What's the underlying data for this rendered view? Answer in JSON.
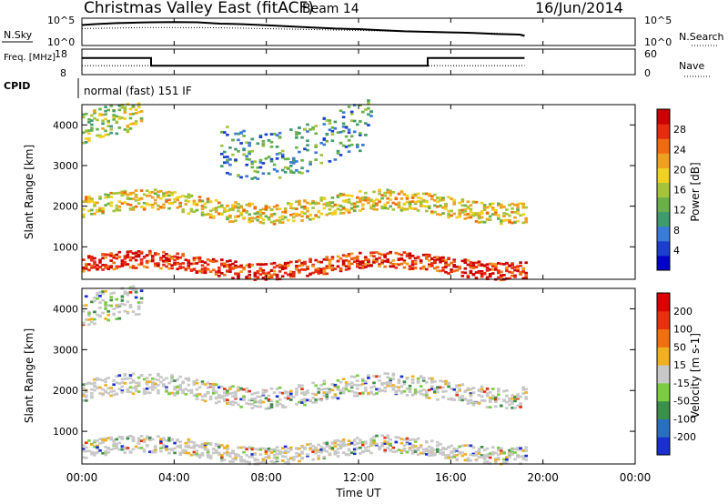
{
  "header": {
    "title": "Christmas Valley East (fitACF)",
    "beam": "Beam 14",
    "date": "16/Jun/2014"
  },
  "chart_data": [
    {
      "type": "line",
      "name": "noise-panel",
      "left_label": "N.Sky",
      "right_label": "N.Search",
      "left_ticks": [
        "10^5",
        "10^0"
      ],
      "right_ticks": [
        "10^5",
        "10^0"
      ],
      "x_range_hours": [
        0,
        24
      ],
      "series": [
        {
          "x": [
            0.0,
            0.5,
            1.0,
            1.5,
            2.0,
            2.5,
            3.0,
            4.0,
            5.0,
            6.0,
            7.0,
            8.0,
            9.0,
            10.0,
            11.0,
            12.0,
            13.0,
            14.0,
            15.0,
            16.0,
            17.0,
            18.0,
            19.0,
            19.2
          ],
          "y": [
            0.75,
            0.78,
            0.8,
            0.82,
            0.83,
            0.84,
            0.85,
            0.86,
            0.85,
            0.8,
            0.78,
            0.74,
            0.7,
            0.66,
            0.62,
            0.6,
            0.56,
            0.52,
            0.5,
            0.48,
            0.46,
            0.42,
            0.4,
            0.35
          ]
        }
      ],
      "dotted_series": [
        {
          "x": [
            0.0,
            3.0,
            6.0,
            9.0,
            12.0,
            15.0,
            18.0,
            19.2
          ],
          "y": [
            0.62,
            0.66,
            0.65,
            0.6,
            0.55,
            0.5,
            0.45,
            0.4
          ]
        }
      ]
    },
    {
      "type": "line",
      "name": "frequency-panel",
      "left_label": "Freq. [MHz]",
      "right_label": "Nave",
      "left_ticks": [
        "18",
        "8"
      ],
      "right_ticks": [
        "60",
        "0"
      ],
      "x_range_hours": [
        0,
        24
      ],
      "freq_series": {
        "x": [
          0.0,
          3.0,
          3.0,
          15.0,
          15.0,
          19.2
        ],
        "y": [
          14.5,
          14.5,
          11.5,
          11.5,
          14.5,
          14.5
        ]
      },
      "nave_series": {
        "x": [
          0.0,
          19.2
        ],
        "y": [
          0.35,
          0.35
        ]
      }
    },
    {
      "type": "table",
      "name": "cpid",
      "label": "CPID",
      "value": "normal (fast) 151 IF"
    },
    {
      "type": "heatmap",
      "name": "power",
      "ylabel": "Slant Range [km]",
      "ylim": [
        200,
        4500
      ],
      "yticks": [
        1000,
        2000,
        3000,
        4000
      ],
      "colorbar": {
        "label": "Power [dB]",
        "ticks": [
          "28",
          "24",
          "20",
          "16",
          "12",
          "8",
          "4"
        ],
        "colors": [
          "#0000cc",
          "#1a3fd0",
          "#3a7ad8",
          "#3f9a6e",
          "#6ab04a",
          "#a6c43a",
          "#f0d020",
          "#f0a020",
          "#f06a10",
          "#e82a10",
          "#cc0000"
        ]
      },
      "bands": [
        {
          "label": "low-range-strong",
          "start": 0.0,
          "end": 19.2,
          "range_lo": 300,
          "range_hi": 800,
          "level": 0.9
        },
        {
          "label": "mid-range-ridge",
          "start": 0.0,
          "end": 19.2,
          "range_lo": 1700,
          "range_hi": 2300,
          "level": 0.6
        },
        {
          "label": "high-range-patch",
          "start": 0.0,
          "end": 2.6,
          "range_lo": 3500,
          "range_hi": 4400,
          "level": 0.5
        },
        {
          "label": "day-upper",
          "start": 6.0,
          "end": 12.5,
          "range_lo": 3000,
          "range_hi": 4400,
          "level": 0.3
        }
      ]
    },
    {
      "type": "heatmap",
      "name": "velocity",
      "ylabel": "Slant Range [km]",
      "xlabel": "Time UT",
      "ylim": [
        200,
        4500
      ],
      "yticks": [
        1000,
        2000,
        3000,
        4000
      ],
      "xticks": [
        "00:00",
        "04:00",
        "08:00",
        "12:00",
        "16:00",
        "20:00",
        "00:00"
      ],
      "colorbar": {
        "label": "Velocity [m s-1]",
        "ticks": [
          "200",
          "100",
          "50",
          "15",
          "-15",
          "-50",
          "-100",
          "-200"
        ],
        "colors": [
          "#1a2fd0",
          "#2a6fbf",
          "#3a8f4a",
          "#7acc40",
          "#c8c8c8",
          "#f0b020",
          "#f07010",
          "#e83010",
          "#dd0000"
        ]
      },
      "bands": [
        {
          "label": "low-range-grey",
          "start": 0.0,
          "end": 19.2,
          "range_lo": 300,
          "range_hi": 800
        },
        {
          "label": "mid-range-grey",
          "start": 0.0,
          "end": 19.2,
          "range_lo": 1700,
          "range_hi": 2300
        },
        {
          "label": "high-range-patch",
          "start": 0.0,
          "end": 2.6,
          "range_lo": 3500,
          "range_hi": 4400
        }
      ]
    }
  ]
}
